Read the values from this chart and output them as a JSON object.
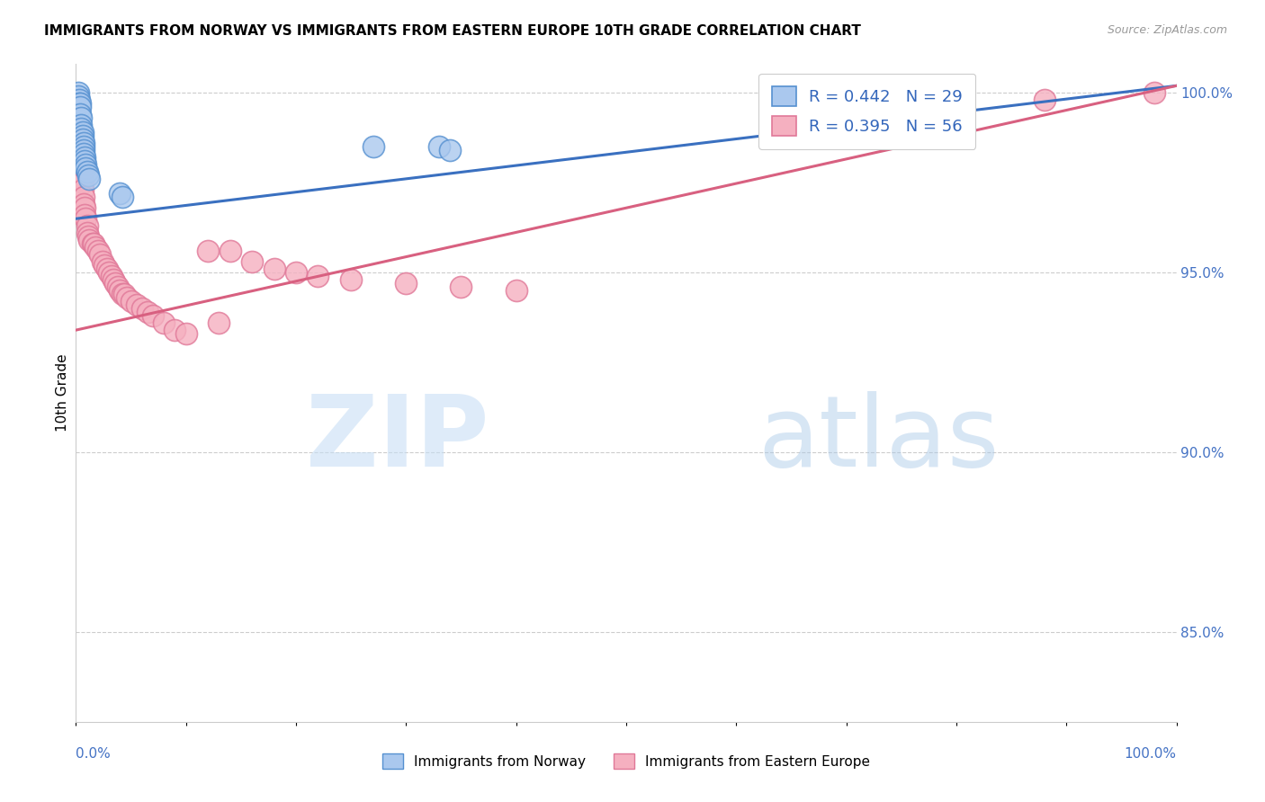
{
  "title": "IMMIGRANTS FROM NORWAY VS IMMIGRANTS FROM EASTERN EUROPE 10TH GRADE CORRELATION CHART",
  "source": "Source: ZipAtlas.com",
  "ylabel": "10th Grade",
  "norway_R": 0.442,
  "norway_N": 29,
  "eastern_R": 0.395,
  "eastern_N": 56,
  "norway_color": "#aac8ee",
  "eastern_color": "#f5b0c0",
  "norway_edge_color": "#5590d0",
  "eastern_edge_color": "#e07898",
  "norway_line_color": "#3a70c0",
  "eastern_line_color": "#d86080",
  "legend_text_color": "#3366bb",
  "right_axis_color": "#4472c4",
  "xmin": 0.0,
  "xmax": 1.0,
  "ymin": 0.825,
  "ymax": 1.008,
  "ytick_positions": [
    0.85,
    0.9,
    0.95,
    1.0
  ],
  "ytick_labels": [
    "85.0%",
    "90.0%",
    "95.0%",
    "100.0%"
  ],
  "norway_trend_x": [
    0.0,
    1.0
  ],
  "norway_trend_y": [
    0.965,
    1.002
  ],
  "eastern_trend_x": [
    0.0,
    1.0
  ],
  "eastern_trend_y": [
    0.934,
    1.002
  ],
  "norway_x": [
    0.002,
    0.002,
    0.003,
    0.003,
    0.004,
    0.004,
    0.004,
    0.005,
    0.005,
    0.005,
    0.006,
    0.006,
    0.006,
    0.007,
    0.007,
    0.007,
    0.007,
    0.008,
    0.008,
    0.009,
    0.009,
    0.01,
    0.011,
    0.012,
    0.04,
    0.042,
    0.27,
    0.33,
    0.34
  ],
  "norway_y": [
    1.0,
    0.999,
    0.998,
    0.997,
    0.997,
    0.996,
    0.994,
    0.993,
    0.991,
    0.99,
    0.989,
    0.988,
    0.987,
    0.986,
    0.985,
    0.984,
    0.983,
    0.982,
    0.981,
    0.98,
    0.979,
    0.978,
    0.977,
    0.976,
    0.972,
    0.971,
    0.985,
    0.985,
    0.984
  ],
  "eastern_x": [
    0.003,
    0.003,
    0.004,
    0.004,
    0.004,
    0.005,
    0.005,
    0.006,
    0.006,
    0.007,
    0.007,
    0.008,
    0.008,
    0.009,
    0.01,
    0.01,
    0.011,
    0.012,
    0.015,
    0.016,
    0.018,
    0.02,
    0.022,
    0.024,
    0.026,
    0.028,
    0.03,
    0.032,
    0.034,
    0.036,
    0.038,
    0.04,
    0.042,
    0.044,
    0.046,
    0.05,
    0.055,
    0.06,
    0.065,
    0.07,
    0.08,
    0.09,
    0.1,
    0.12,
    0.14,
    0.16,
    0.18,
    0.2,
    0.22,
    0.25,
    0.3,
    0.35,
    0.4,
    0.13,
    0.88,
    0.98
  ],
  "eastern_y": [
    0.99,
    0.985,
    0.984,
    0.982,
    0.98,
    0.978,
    0.976,
    0.975,
    0.973,
    0.971,
    0.969,
    0.968,
    0.966,
    0.965,
    0.963,
    0.961,
    0.96,
    0.959,
    0.958,
    0.958,
    0.957,
    0.956,
    0.955,
    0.953,
    0.952,
    0.951,
    0.95,
    0.949,
    0.948,
    0.947,
    0.946,
    0.945,
    0.944,
    0.944,
    0.943,
    0.942,
    0.941,
    0.94,
    0.939,
    0.938,
    0.936,
    0.934,
    0.933,
    0.956,
    0.956,
    0.953,
    0.951,
    0.95,
    0.949,
    0.948,
    0.947,
    0.946,
    0.945,
    0.936,
    0.998,
    1.0
  ],
  "bottom_legend_norway": "Immigrants from Norway",
  "bottom_legend_eastern": "Immigrants from Eastern Europe"
}
